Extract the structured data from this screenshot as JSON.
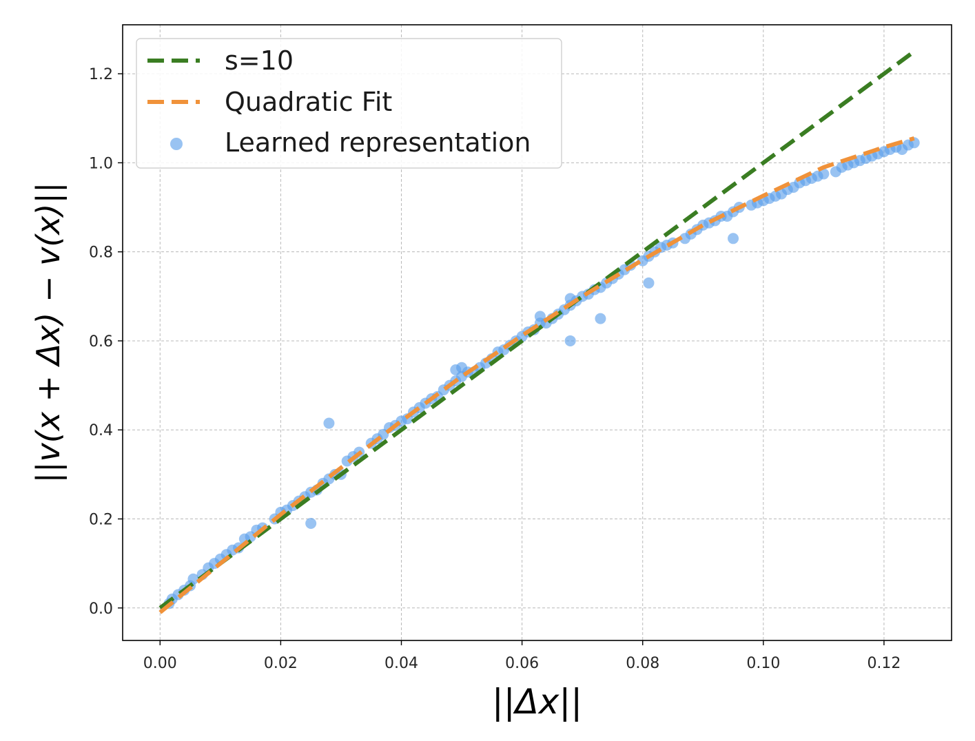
{
  "chart_data": {
    "type": "scatter",
    "title": "",
    "xlabel": "||Δx||",
    "ylabel": "||v(x + Δx) − v(x)||",
    "xlim": [
      -0.0062,
      0.1312
    ],
    "ylim": [
      -0.073,
      1.31
    ],
    "x_ticks": [
      "0.00",
      "0.02",
      "0.04",
      "0.06",
      "0.08",
      "0.10",
      "0.12"
    ],
    "y_ticks": [
      "0.0",
      "0.2",
      "0.4",
      "0.6",
      "0.8",
      "1.0",
      "1.2"
    ],
    "grid": true,
    "legend_position": "top-left",
    "legend": [
      "s=10",
      "Quadratic Fit",
      "Learned representation"
    ],
    "series": [
      {
        "name": "s=10",
        "kind": "line",
        "style": "dashed",
        "color": "#3a7d22",
        "x": [
          0.0,
          0.125
        ],
        "y": [
          0.0,
          1.25
        ]
      },
      {
        "name": "Quadratic Fit",
        "kind": "line",
        "style": "dashed",
        "color": "#f0923a",
        "x": [
          0.0,
          0.01,
          0.02,
          0.03,
          0.04,
          0.05,
          0.06,
          0.07,
          0.08,
          0.09,
          0.1,
          0.11,
          0.12,
          0.125
        ],
        "y": [
          -0.01,
          0.1,
          0.21,
          0.315,
          0.42,
          0.52,
          0.612,
          0.7,
          0.782,
          0.86,
          0.926,
          0.99,
          1.035,
          1.055
        ]
      },
      {
        "name": "Learned representation",
        "kind": "scatter",
        "color": "#5a9eea",
        "points": [
          [
            0.0015,
            0.01
          ],
          [
            0.002,
            0.02
          ],
          [
            0.003,
            0.03
          ],
          [
            0.004,
            0.04
          ],
          [
            0.005,
            0.05
          ],
          [
            0.0055,
            0.065
          ],
          [
            0.007,
            0.075
          ],
          [
            0.008,
            0.09
          ],
          [
            0.009,
            0.1
          ],
          [
            0.01,
            0.11
          ],
          [
            0.011,
            0.12
          ],
          [
            0.012,
            0.13
          ],
          [
            0.013,
            0.135
          ],
          [
            0.014,
            0.155
          ],
          [
            0.015,
            0.16
          ],
          [
            0.016,
            0.175
          ],
          [
            0.017,
            0.18
          ],
          [
            0.019,
            0.2
          ],
          [
            0.02,
            0.215
          ],
          [
            0.021,
            0.22
          ],
          [
            0.022,
            0.23
          ],
          [
            0.023,
            0.24
          ],
          [
            0.024,
            0.25
          ],
          [
            0.025,
            0.26
          ],
          [
            0.026,
            0.265
          ],
          [
            0.027,
            0.28
          ],
          [
            0.028,
            0.29
          ],
          [
            0.029,
            0.3
          ],
          [
            0.03,
            0.3
          ],
          [
            0.031,
            0.33
          ],
          [
            0.032,
            0.34
          ],
          [
            0.033,
            0.35
          ],
          [
            0.035,
            0.37
          ],
          [
            0.036,
            0.38
          ],
          [
            0.037,
            0.39
          ],
          [
            0.038,
            0.405
          ],
          [
            0.039,
            0.41
          ],
          [
            0.04,
            0.42
          ],
          [
            0.041,
            0.425
          ],
          [
            0.042,
            0.44
          ],
          [
            0.043,
            0.45
          ],
          [
            0.044,
            0.46
          ],
          [
            0.045,
            0.47
          ],
          [
            0.046,
            0.475
          ],
          [
            0.047,
            0.49
          ],
          [
            0.048,
            0.5
          ],
          [
            0.049,
            0.51
          ],
          [
            0.049,
            0.535
          ],
          [
            0.05,
            0.52
          ],
          [
            0.05,
            0.54
          ],
          [
            0.051,
            0.53
          ],
          [
            0.052,
            0.53
          ],
          [
            0.053,
            0.54
          ],
          [
            0.054,
            0.55
          ],
          [
            0.055,
            0.56
          ],
          [
            0.056,
            0.575
          ],
          [
            0.057,
            0.58
          ],
          [
            0.058,
            0.59
          ],
          [
            0.059,
            0.6
          ],
          [
            0.06,
            0.61
          ],
          [
            0.061,
            0.62
          ],
          [
            0.062,
            0.625
          ],
          [
            0.063,
            0.64
          ],
          [
            0.063,
            0.655
          ],
          [
            0.064,
            0.64
          ],
          [
            0.065,
            0.65
          ],
          [
            0.066,
            0.66
          ],
          [
            0.067,
            0.67
          ],
          [
            0.068,
            0.68
          ],
          [
            0.068,
            0.695
          ],
          [
            0.069,
            0.69
          ],
          [
            0.07,
            0.7
          ],
          [
            0.071,
            0.705
          ],
          [
            0.072,
            0.715
          ],
          [
            0.073,
            0.72
          ],
          [
            0.074,
            0.73
          ],
          [
            0.075,
            0.74
          ],
          [
            0.076,
            0.75
          ],
          [
            0.077,
            0.76
          ],
          [
            0.078,
            0.77
          ],
          [
            0.08,
            0.78
          ],
          [
            0.081,
            0.79
          ],
          [
            0.082,
            0.8
          ],
          [
            0.083,
            0.81
          ],
          [
            0.084,
            0.815
          ],
          [
            0.085,
            0.82
          ],
          [
            0.087,
            0.83
          ],
          [
            0.088,
            0.84
          ],
          [
            0.089,
            0.85
          ],
          [
            0.09,
            0.86
          ],
          [
            0.091,
            0.865
          ],
          [
            0.092,
            0.87
          ],
          [
            0.093,
            0.88
          ],
          [
            0.094,
            0.88
          ],
          [
            0.095,
            0.89
          ],
          [
            0.096,
            0.9
          ],
          [
            0.098,
            0.905
          ],
          [
            0.099,
            0.91
          ],
          [
            0.1,
            0.915
          ],
          [
            0.101,
            0.92
          ],
          [
            0.102,
            0.925
          ],
          [
            0.103,
            0.93
          ],
          [
            0.104,
            0.94
          ],
          [
            0.105,
            0.945
          ],
          [
            0.106,
            0.955
          ],
          [
            0.107,
            0.96
          ],
          [
            0.108,
            0.965
          ],
          [
            0.109,
            0.97
          ],
          [
            0.11,
            0.975
          ],
          [
            0.112,
            0.98
          ],
          [
            0.113,
            0.99
          ],
          [
            0.114,
            0.995
          ],
          [
            0.115,
            1.0
          ],
          [
            0.116,
            1.005
          ],
          [
            0.117,
            1.01
          ],
          [
            0.118,
            1.015
          ],
          [
            0.119,
            1.02
          ],
          [
            0.12,
            1.025
          ],
          [
            0.121,
            1.03
          ],
          [
            0.122,
            1.035
          ],
          [
            0.123,
            1.03
          ],
          [
            0.124,
            1.04
          ],
          [
            0.125,
            1.045
          ],
          [
            0.028,
            0.415
          ],
          [
            0.025,
            0.19
          ],
          [
            0.068,
            0.6
          ],
          [
            0.073,
            0.65
          ],
          [
            0.081,
            0.73
          ],
          [
            0.095,
            0.83
          ]
        ]
      }
    ]
  }
}
